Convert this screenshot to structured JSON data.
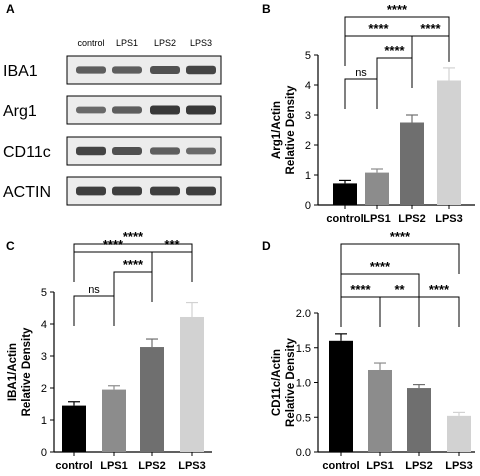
{
  "panels": {
    "A": {
      "letter": "A",
      "lane_labels": [
        "control",
        "LPS1",
        "LPS2",
        "LPS3"
      ],
      "rows": [
        {
          "label": "IBA1",
          "intensity": [
            0.55,
            0.55,
            0.65,
            0.75
          ]
        },
        {
          "label": "Arg1",
          "intensity": [
            0.45,
            0.55,
            0.85,
            0.85
          ]
        },
        {
          "label": "CD11c",
          "intensity": [
            0.75,
            0.65,
            0.55,
            0.45
          ]
        },
        {
          "label": "ACTIN",
          "intensity": [
            0.8,
            0.8,
            0.8,
            0.8
          ]
        }
      ]
    },
    "B": {
      "letter": "B"
    },
    "C": {
      "letter": "C"
    },
    "D": {
      "letter": "D"
    }
  },
  "colors": {
    "bars": [
      "#000000",
      "#8c8c8c",
      "#6f6f6f",
      "#d2d2d2"
    ],
    "brackets": "#000000",
    "blot_background": "#ececec",
    "band": "#1a1a1a"
  },
  "chart_data": [
    {
      "panel": "B",
      "type": "bar",
      "categories": [
        "control",
        "LPS1",
        "LPS2",
        "LPS3"
      ],
      "values": [
        0.72,
        1.08,
        2.75,
        4.15
      ],
      "errors": [
        0.1,
        0.12,
        0.25,
        0.42
      ],
      "ylabel": [
        "Arg1/Actin",
        "Relative Density"
      ],
      "ylim": [
        0,
        5
      ],
      "yticks": [
        0,
        1,
        2,
        3,
        4,
        5
      ],
      "significance": [
        {
          "from": 0,
          "to": 1,
          "label": "ns",
          "level": 1
        },
        {
          "from": 1,
          "to": 2,
          "label": "****",
          "level": 2
        },
        {
          "from": 0,
          "to": 2,
          "label": "****",
          "level": 3
        },
        {
          "from": 2,
          "to": 3,
          "label": "****",
          "level": 3
        },
        {
          "from": 0,
          "to": 3,
          "label": "****",
          "level": 4
        }
      ]
    },
    {
      "panel": "C",
      "type": "bar",
      "categories": [
        "control",
        "LPS1",
        "LPS2",
        "LPS3"
      ],
      "values": [
        1.45,
        1.95,
        3.28,
        4.22
      ],
      "errors": [
        0.12,
        0.12,
        0.25,
        0.45
      ],
      "ylabel": [
        "IBA1/Actin",
        "Relative Density"
      ],
      "ylim": [
        0,
        5
      ],
      "yticks": [
        0,
        1,
        2,
        3,
        4,
        5
      ],
      "significance": [
        {
          "from": 0,
          "to": 1,
          "label": "ns",
          "level": 1
        },
        {
          "from": 1,
          "to": 2,
          "label": "****",
          "level": 2
        },
        {
          "from": 0,
          "to": 2,
          "label": "****",
          "level": 3
        },
        {
          "from": 2,
          "to": 3,
          "label": "***",
          "level": 3
        },
        {
          "from": 0,
          "to": 3,
          "label": "****",
          "level": 4
        }
      ]
    },
    {
      "panel": "D",
      "type": "bar",
      "categories": [
        "control",
        "LPS1",
        "LPS2",
        "LPS3"
      ],
      "values": [
        1.6,
        1.18,
        0.92,
        0.52
      ],
      "errors": [
        0.1,
        0.1,
        0.05,
        0.05
      ],
      "ylabel": [
        "CD11c/Actin",
        "Relative Density"
      ],
      "ylim": [
        0,
        2.0
      ],
      "yticks": [
        0.0,
        0.5,
        1.0,
        1.5,
        2.0
      ],
      "significance": [
        {
          "from": 0,
          "to": 1,
          "label": "****",
          "level": 1
        },
        {
          "from": 1,
          "to": 2,
          "label": "**",
          "level": 1
        },
        {
          "from": 2,
          "to": 3,
          "label": "****",
          "level": 1
        },
        {
          "from": 0,
          "to": 2,
          "label": "****",
          "level": 2
        },
        {
          "from": 0,
          "to": 3,
          "label": "****",
          "level": 3
        }
      ]
    }
  ]
}
